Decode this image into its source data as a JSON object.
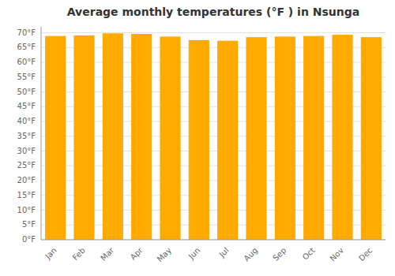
{
  "chart_data": {
    "type": "bar",
    "title": "Average monthly temperatures (°F ) in Nsunga",
    "categories": [
      "Jan",
      "Feb",
      "Mar",
      "Apr",
      "May",
      "Jun",
      "Jul",
      "Aug",
      "Sep",
      "Oct",
      "Nov",
      "Dec"
    ],
    "values": [
      68.9,
      69.1,
      69.8,
      69.6,
      68.7,
      67.5,
      67.3,
      68.5,
      68.7,
      68.9,
      69.3,
      68.5
    ],
    "color": "#FFAA00",
    "ylim": [
      0,
      72
    ],
    "yticks": [
      {
        "value": 0,
        "label": "0°F"
      },
      {
        "value": 5,
        "label": "5°F"
      },
      {
        "value": 10,
        "label": "10°F"
      },
      {
        "value": 15,
        "label": "15°F"
      },
      {
        "value": 20,
        "label": "20°F"
      },
      {
        "value": 25,
        "label": "25°F"
      },
      {
        "value": 30,
        "label": "30°F"
      },
      {
        "value": 35,
        "label": "35°F"
      },
      {
        "value": 40,
        "label": "40°F"
      },
      {
        "value": 45,
        "label": "45°F"
      },
      {
        "value": 50,
        "label": "50°F"
      },
      {
        "value": 55,
        "label": "55°F"
      },
      {
        "value": 60,
        "label": "60°F"
      },
      {
        "value": 65,
        "label": "65°F"
      },
      {
        "value": 70,
        "label": "70°F"
      }
    ],
    "grid": true
  }
}
